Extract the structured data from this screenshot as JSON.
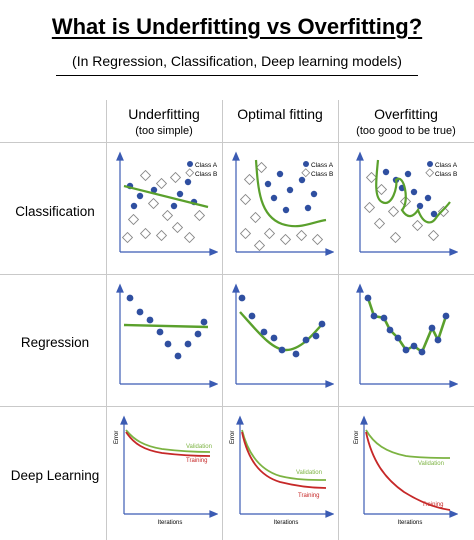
{
  "header": {
    "title": "What is Underfitting vs Overfitting?",
    "subtitle": "(In Regression, Classification, Deep learning models)"
  },
  "columns": [
    {
      "label": "Underfitting",
      "note": "(too simple)"
    },
    {
      "label": "Optimal fitting",
      "note": ""
    },
    {
      "label": "Overfitting",
      "note": "(too good to be true)"
    }
  ],
  "rows": [
    {
      "label": "Classification"
    },
    {
      "label": "Regression"
    },
    {
      "label": "Deep Learning"
    }
  ],
  "legend": {
    "class_a": "Class A",
    "class_b": "Class B"
  },
  "dl_labels": {
    "validation": "Validation",
    "training": "Training",
    "x_axis": "Iterations",
    "y_axis": "Error"
  },
  "colors": {
    "class_a": "#2f4fa0",
    "fit_line": "#5aa02c",
    "validation": "#7cb342",
    "training": "#c62828",
    "axis": "#3b5bb3"
  }
}
